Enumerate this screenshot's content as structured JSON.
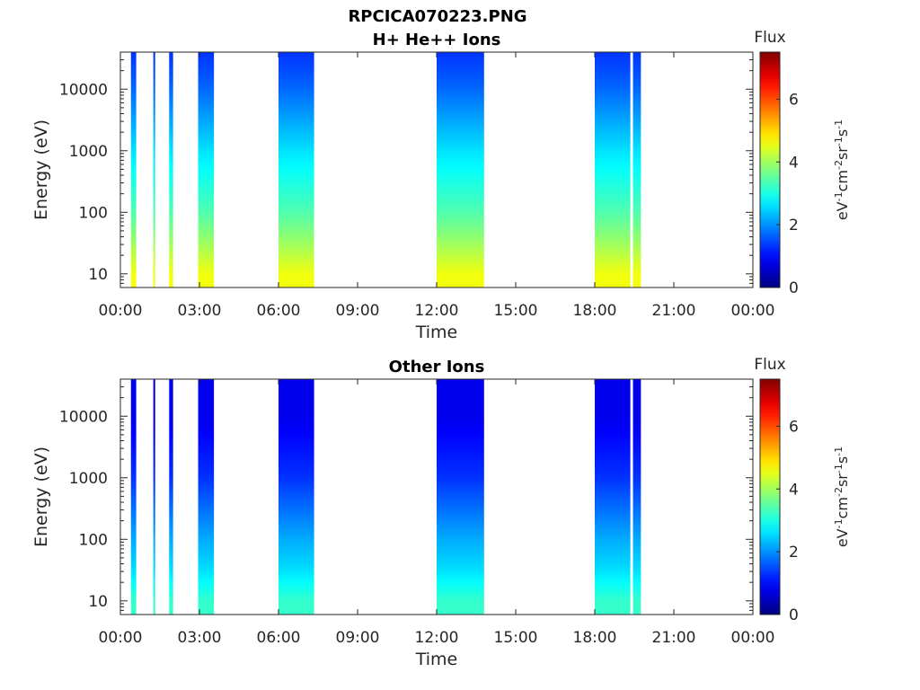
{
  "figure_title": "RPCICA070223.PNG",
  "colorbar": {
    "label": "Flux",
    "ticks": [
      "0",
      "2",
      "4",
      "6"
    ],
    "unit_parts": [
      {
        "t": "eV",
        "sup": false
      },
      {
        "t": "-1",
        "sup": true
      },
      {
        "t": "cm",
        "sup": false
      },
      {
        "t": "-2",
        "sup": true
      },
      {
        "t": "sr",
        "sup": false
      },
      {
        "t": "-1",
        "sup": true
      },
      {
        "t": "s",
        "sup": false
      },
      {
        "t": "-1",
        "sup": true
      }
    ],
    "range": [
      0,
      7.5
    ],
    "colormap": "jet"
  },
  "chart_data": [
    {
      "type": "heatmap",
      "title": "H+ He++ Ions",
      "xlabel": "Time",
      "ylabel": "Energy (eV)",
      "xticks": [
        "00:00",
        "03:00",
        "06:00",
        "09:00",
        "12:00",
        "15:00",
        "18:00",
        "21:00",
        "00:00"
      ],
      "xlim_hours": [
        0,
        24
      ],
      "yscale": "log",
      "ylim": [
        6,
        40000
      ],
      "yticks": [
        "10",
        "100",
        "1000",
        "10000"
      ],
      "data_intervals_hours": [
        [
          0.4,
          0.6
        ],
        [
          1.25,
          1.32
        ],
        [
          1.85,
          2.0
        ],
        [
          2.95,
          3.55
        ],
        [
          6.0,
          7.35
        ],
        [
          12.0,
          13.8
        ],
        [
          18.0,
          19.35
        ],
        [
          19.45,
          19.75
        ]
      ],
      "energy_profile": [
        {
          "energy": 10,
          "flux": 4.6
        },
        {
          "energy": 30,
          "flux": 4.0
        },
        {
          "energy": 100,
          "flux": 3.4
        },
        {
          "energy": 1000,
          "flux": 2.6
        },
        {
          "energy": 10000,
          "flux": 1.7
        },
        {
          "energy": 40000,
          "flux": 1.3
        }
      ]
    },
    {
      "type": "heatmap",
      "title": "Other Ions",
      "xlabel": "Time",
      "ylabel": "Energy (eV)",
      "xticks": [
        "00:00",
        "03:00",
        "06:00",
        "09:00",
        "12:00",
        "15:00",
        "18:00",
        "21:00",
        "00:00"
      ],
      "xlim_hours": [
        0,
        24
      ],
      "yscale": "log",
      "ylim": [
        6,
        40000
      ],
      "yticks": [
        "10",
        "100",
        "1000",
        "10000"
      ],
      "data_intervals_hours": [
        [
          0.4,
          0.6
        ],
        [
          1.25,
          1.32
        ],
        [
          1.85,
          2.0
        ],
        [
          2.95,
          3.55
        ],
        [
          6.0,
          7.35
        ],
        [
          12.0,
          13.8
        ],
        [
          18.0,
          19.35
        ],
        [
          19.45,
          19.75
        ]
      ],
      "energy_profile": [
        {
          "energy": 10,
          "flux": 3.2
        },
        {
          "energy": 30,
          "flux": 2.6
        },
        {
          "energy": 100,
          "flux": 2.2
        },
        {
          "energy": 1000,
          "flux": 1.3
        },
        {
          "energy": 10000,
          "flux": 0.8
        },
        {
          "energy": 40000,
          "flux": 0.8
        }
      ]
    }
  ]
}
